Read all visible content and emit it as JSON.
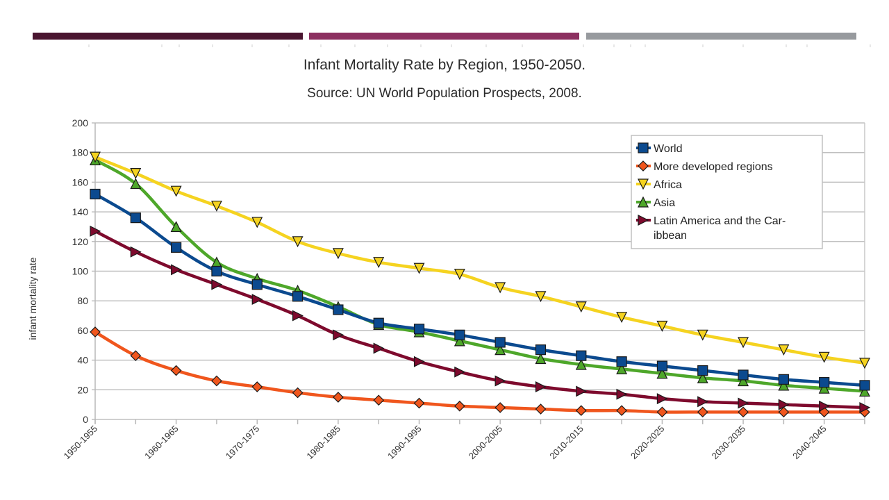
{
  "slide": {
    "accent_bars": [
      {
        "name": "bar-dark-plum",
        "color": "#4a1530"
      },
      {
        "name": "bar-magenta",
        "color": "#8c3060"
      },
      {
        "name": "bar-gray",
        "color": "#979a9e"
      }
    ]
  },
  "chart_data": {
    "type": "line",
    "title": "Infant Mortality Rate by Region, 1950-2050.",
    "subtitle": "Source: UN World Population Prospects, 2008.",
    "xlabel": "",
    "ylabel": "infant mortality rate",
    "ylim": [
      0,
      200
    ],
    "yticks": [
      0,
      20,
      40,
      60,
      80,
      100,
      120,
      140,
      160,
      180,
      200
    ],
    "grid": true,
    "legend_position": "top-right",
    "categories": [
      "1950-1955",
      "1955-1960",
      "1960-1965",
      "1965-1970",
      "1970-1975",
      "1975-1980",
      "1980-1985",
      "1985-1990",
      "1990-1995",
      "1995-2000",
      "2000-2005",
      "2005-2010",
      "2010-2015",
      "2015-2020",
      "2020-2025",
      "2025-2030",
      "2030-2035",
      "2035-2040",
      "2040-2045",
      "2045-2050"
    ],
    "visible_xtick_labels": [
      "1950-1955",
      "1960-1965",
      "1970-1975",
      "1980-1985",
      "1990-1995",
      "2000-2005",
      "2010-2015",
      "2020-2025",
      "2030-2035",
      "2040-2045"
    ],
    "series": [
      {
        "name": "World",
        "color": "#0b4a8f",
        "marker": "square",
        "values": [
          152,
          136,
          116,
          100,
          91,
          83,
          74,
          65,
          61,
          57,
          52,
          47,
          43,
          39,
          36,
          33,
          30,
          27,
          25,
          23
        ]
      },
      {
        "name": "More developed regions",
        "color": "#f0561d",
        "marker": "diamond",
        "values": [
          59,
          43,
          33,
          26,
          22,
          18,
          15,
          13,
          11,
          9,
          8,
          7,
          6,
          6,
          5,
          5,
          5,
          5,
          5,
          5
        ]
      },
      {
        "name": "Africa",
        "color": "#f5d320",
        "marker": "triangle-down",
        "values": [
          177,
          166,
          154,
          144,
          133,
          120,
          112,
          106,
          102,
          98,
          89,
          83,
          76,
          69,
          63,
          57,
          52,
          47,
          42,
          38
        ]
      },
      {
        "name": "Asia",
        "color": "#4ea72a",
        "marker": "triangle-up",
        "values": [
          175,
          159,
          130,
          106,
          95,
          87,
          76,
          64,
          59,
          53,
          47,
          41,
          37,
          34,
          31,
          28,
          26,
          23,
          21,
          19
        ]
      },
      {
        "name": "Latin America and the Caribbean",
        "legend_lines": [
          "Latin America and the Car-",
          "ibbean"
        ],
        "color": "#7e0a2d",
        "marker": "triangle-right",
        "values": [
          127,
          113,
          101,
          91,
          81,
          70,
          57,
          48,
          39,
          32,
          26,
          22,
          19,
          17,
          14,
          12,
          11,
          10,
          9,
          8
        ]
      }
    ]
  }
}
